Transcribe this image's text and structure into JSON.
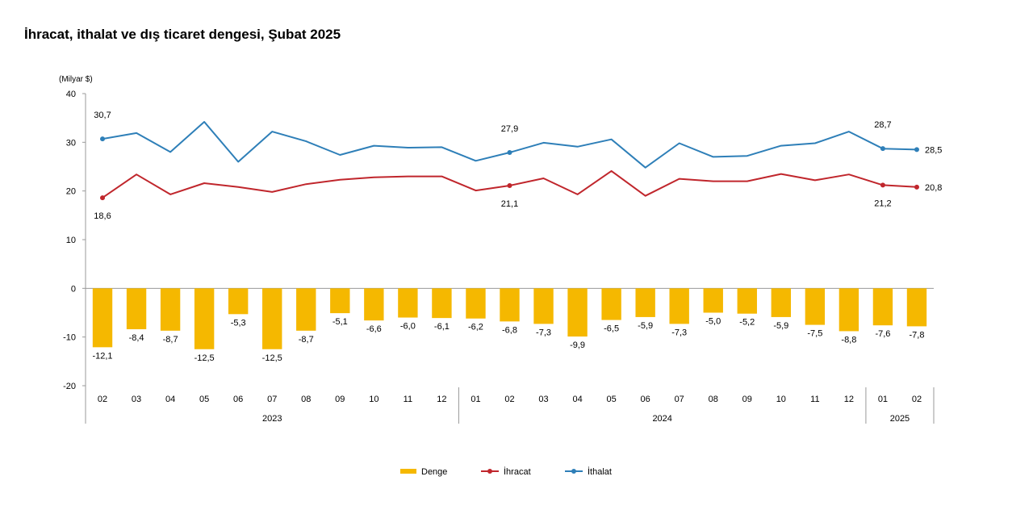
{
  "chart_data": {
    "type": "bar+line",
    "title": "İhracat, ithalat ve dış ticaret dengesi, Şubat 2025",
    "unit_label": "(Milyar $)",
    "ylim": [
      -20,
      40
    ],
    "yticks": [
      "40",
      "30",
      "20",
      "10",
      "0",
      "-10",
      "-20"
    ],
    "categories": [
      "02",
      "03",
      "04",
      "05",
      "06",
      "07",
      "08",
      "09",
      "10",
      "11",
      "12",
      "01",
      "02",
      "03",
      "04",
      "05",
      "06",
      "07",
      "08",
      "09",
      "10",
      "11",
      "12",
      "01",
      "02"
    ],
    "groups": [
      {
        "label": "2023",
        "start": 0,
        "end": 10
      },
      {
        "label": "2024",
        "start": 11,
        "end": 22
      },
      {
        "label": "2025",
        "start": 23,
        "end": 24
      }
    ],
    "series": [
      {
        "name": "Denge",
        "kind": "bar",
        "color": "#f5b800",
        "values": [
          -12.1,
          -8.4,
          -8.7,
          -12.5,
          -5.3,
          -12.5,
          -8.7,
          -5.1,
          -6.6,
          -6.0,
          -6.1,
          -6.2,
          -6.8,
          -7.3,
          -9.9,
          -6.5,
          -5.9,
          -7.3,
          -5.0,
          -5.2,
          -5.9,
          -7.5,
          -8.8,
          -7.6,
          -7.8
        ],
        "labels": [
          "-12,1",
          "-8,4",
          "-8,7",
          "-12,5",
          "-5,3",
          "-12,5",
          "-8,7",
          "-5,1",
          "-6,6",
          "-6,0",
          "-6,1",
          "-6,2",
          "-6,8",
          "-7,3",
          "-9,9",
          "-6,5",
          "-5,9",
          "-7,3",
          "-5,0",
          "-5,2",
          "-5,9",
          "-7,5",
          "-8,8",
          "-7,6",
          "-7,8"
        ]
      },
      {
        "name": "İhracat",
        "kind": "line",
        "color": "#c0262c",
        "values": [
          18.6,
          23.4,
          19.3,
          21.6,
          20.8,
          19.8,
          21.4,
          22.3,
          22.8,
          23.0,
          23.0,
          20.1,
          21.1,
          22.6,
          19.3,
          24.1,
          19.0,
          22.5,
          22.0,
          22.0,
          23.5,
          22.2,
          23.4,
          21.2,
          20.8
        ],
        "labels": [
          {
            "i": 0,
            "text": "18,6",
            "pos": "below"
          },
          {
            "i": 12,
            "text": "21,1",
            "pos": "below"
          },
          {
            "i": 23,
            "text": "21,2",
            "pos": "below"
          },
          {
            "i": 24,
            "text": "20,8",
            "pos": "right"
          }
        ],
        "markers": [
          0,
          12,
          23,
          24
        ]
      },
      {
        "name": "İthalat",
        "kind": "line",
        "color": "#2e7fb8",
        "values": [
          30.7,
          31.9,
          28.0,
          34.2,
          26.0,
          32.2,
          30.2,
          27.4,
          29.3,
          28.9,
          29.0,
          26.2,
          27.9,
          29.9,
          29.1,
          30.6,
          24.8,
          29.8,
          27.0,
          27.2,
          29.3,
          29.8,
          32.2,
          28.7,
          28.5
        ],
        "labels": [
          {
            "i": 0,
            "text": "30,7",
            "pos": "above"
          },
          {
            "i": 12,
            "text": "27,9",
            "pos": "above"
          },
          {
            "i": 23,
            "text": "28,7",
            "pos": "above"
          },
          {
            "i": 24,
            "text": "28,5",
            "pos": "right"
          }
        ],
        "markers": [
          0,
          12,
          23,
          24
        ]
      }
    ],
    "legend": {
      "position": "bottom",
      "items": [
        "Denge",
        "İhracat",
        "İthalat"
      ]
    },
    "grid": false
  }
}
